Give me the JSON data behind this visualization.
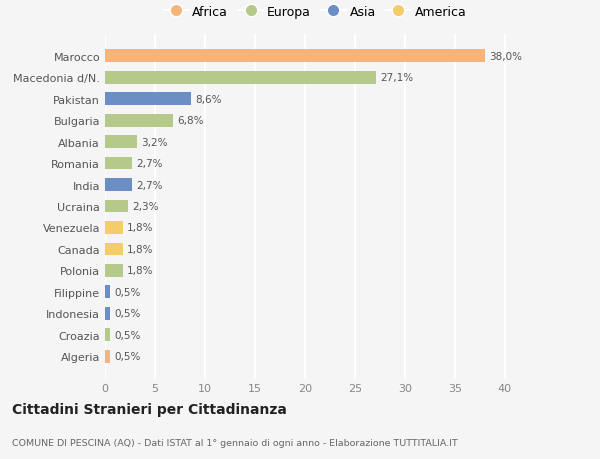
{
  "categories": [
    "Algeria",
    "Croazia",
    "Indonesia",
    "Filippine",
    "Polonia",
    "Canada",
    "Venezuela",
    "Ucraina",
    "India",
    "Romania",
    "Albania",
    "Bulgaria",
    "Pakistan",
    "Macedonia d/N.",
    "Marocco"
  ],
  "values": [
    0.5,
    0.5,
    0.5,
    0.5,
    1.8,
    1.8,
    1.8,
    2.3,
    2.7,
    2.7,
    3.2,
    6.8,
    8.6,
    27.1,
    38.0
  ],
  "labels": [
    "0,5%",
    "0,5%",
    "0,5%",
    "0,5%",
    "1,8%",
    "1,8%",
    "1,8%",
    "2,3%",
    "2,7%",
    "2,7%",
    "3,2%",
    "6,8%",
    "8,6%",
    "27,1%",
    "38,0%"
  ],
  "colors": [
    "#f5b57a",
    "#b5c98a",
    "#6b8ec4",
    "#6b8ec4",
    "#b5c98a",
    "#f5cc6a",
    "#f5cc6a",
    "#b5c98a",
    "#6b8ec4",
    "#b5c98a",
    "#b5c98a",
    "#b5c98a",
    "#6b8ec4",
    "#b5c98a",
    "#f5b57a"
  ],
  "legend_labels": [
    "Africa",
    "Europa",
    "Asia",
    "America"
  ],
  "legend_colors": [
    "#f5b57a",
    "#b5c98a",
    "#6b8ec4",
    "#f5cc6a"
  ],
  "title": "Cittadini Stranieri per Cittadinanza",
  "subtitle": "COMUNE DI PESCINA (AQ) - Dati ISTAT al 1° gennaio di ogni anno - Elaborazione TUTTITALIA.IT",
  "xlim": [
    0,
    42
  ],
  "xticks": [
    0,
    5,
    10,
    15,
    20,
    25,
    30,
    35,
    40
  ],
  "background_color": "#f5f5f5",
  "grid_color": "#ffffff",
  "bar_height": 0.6
}
